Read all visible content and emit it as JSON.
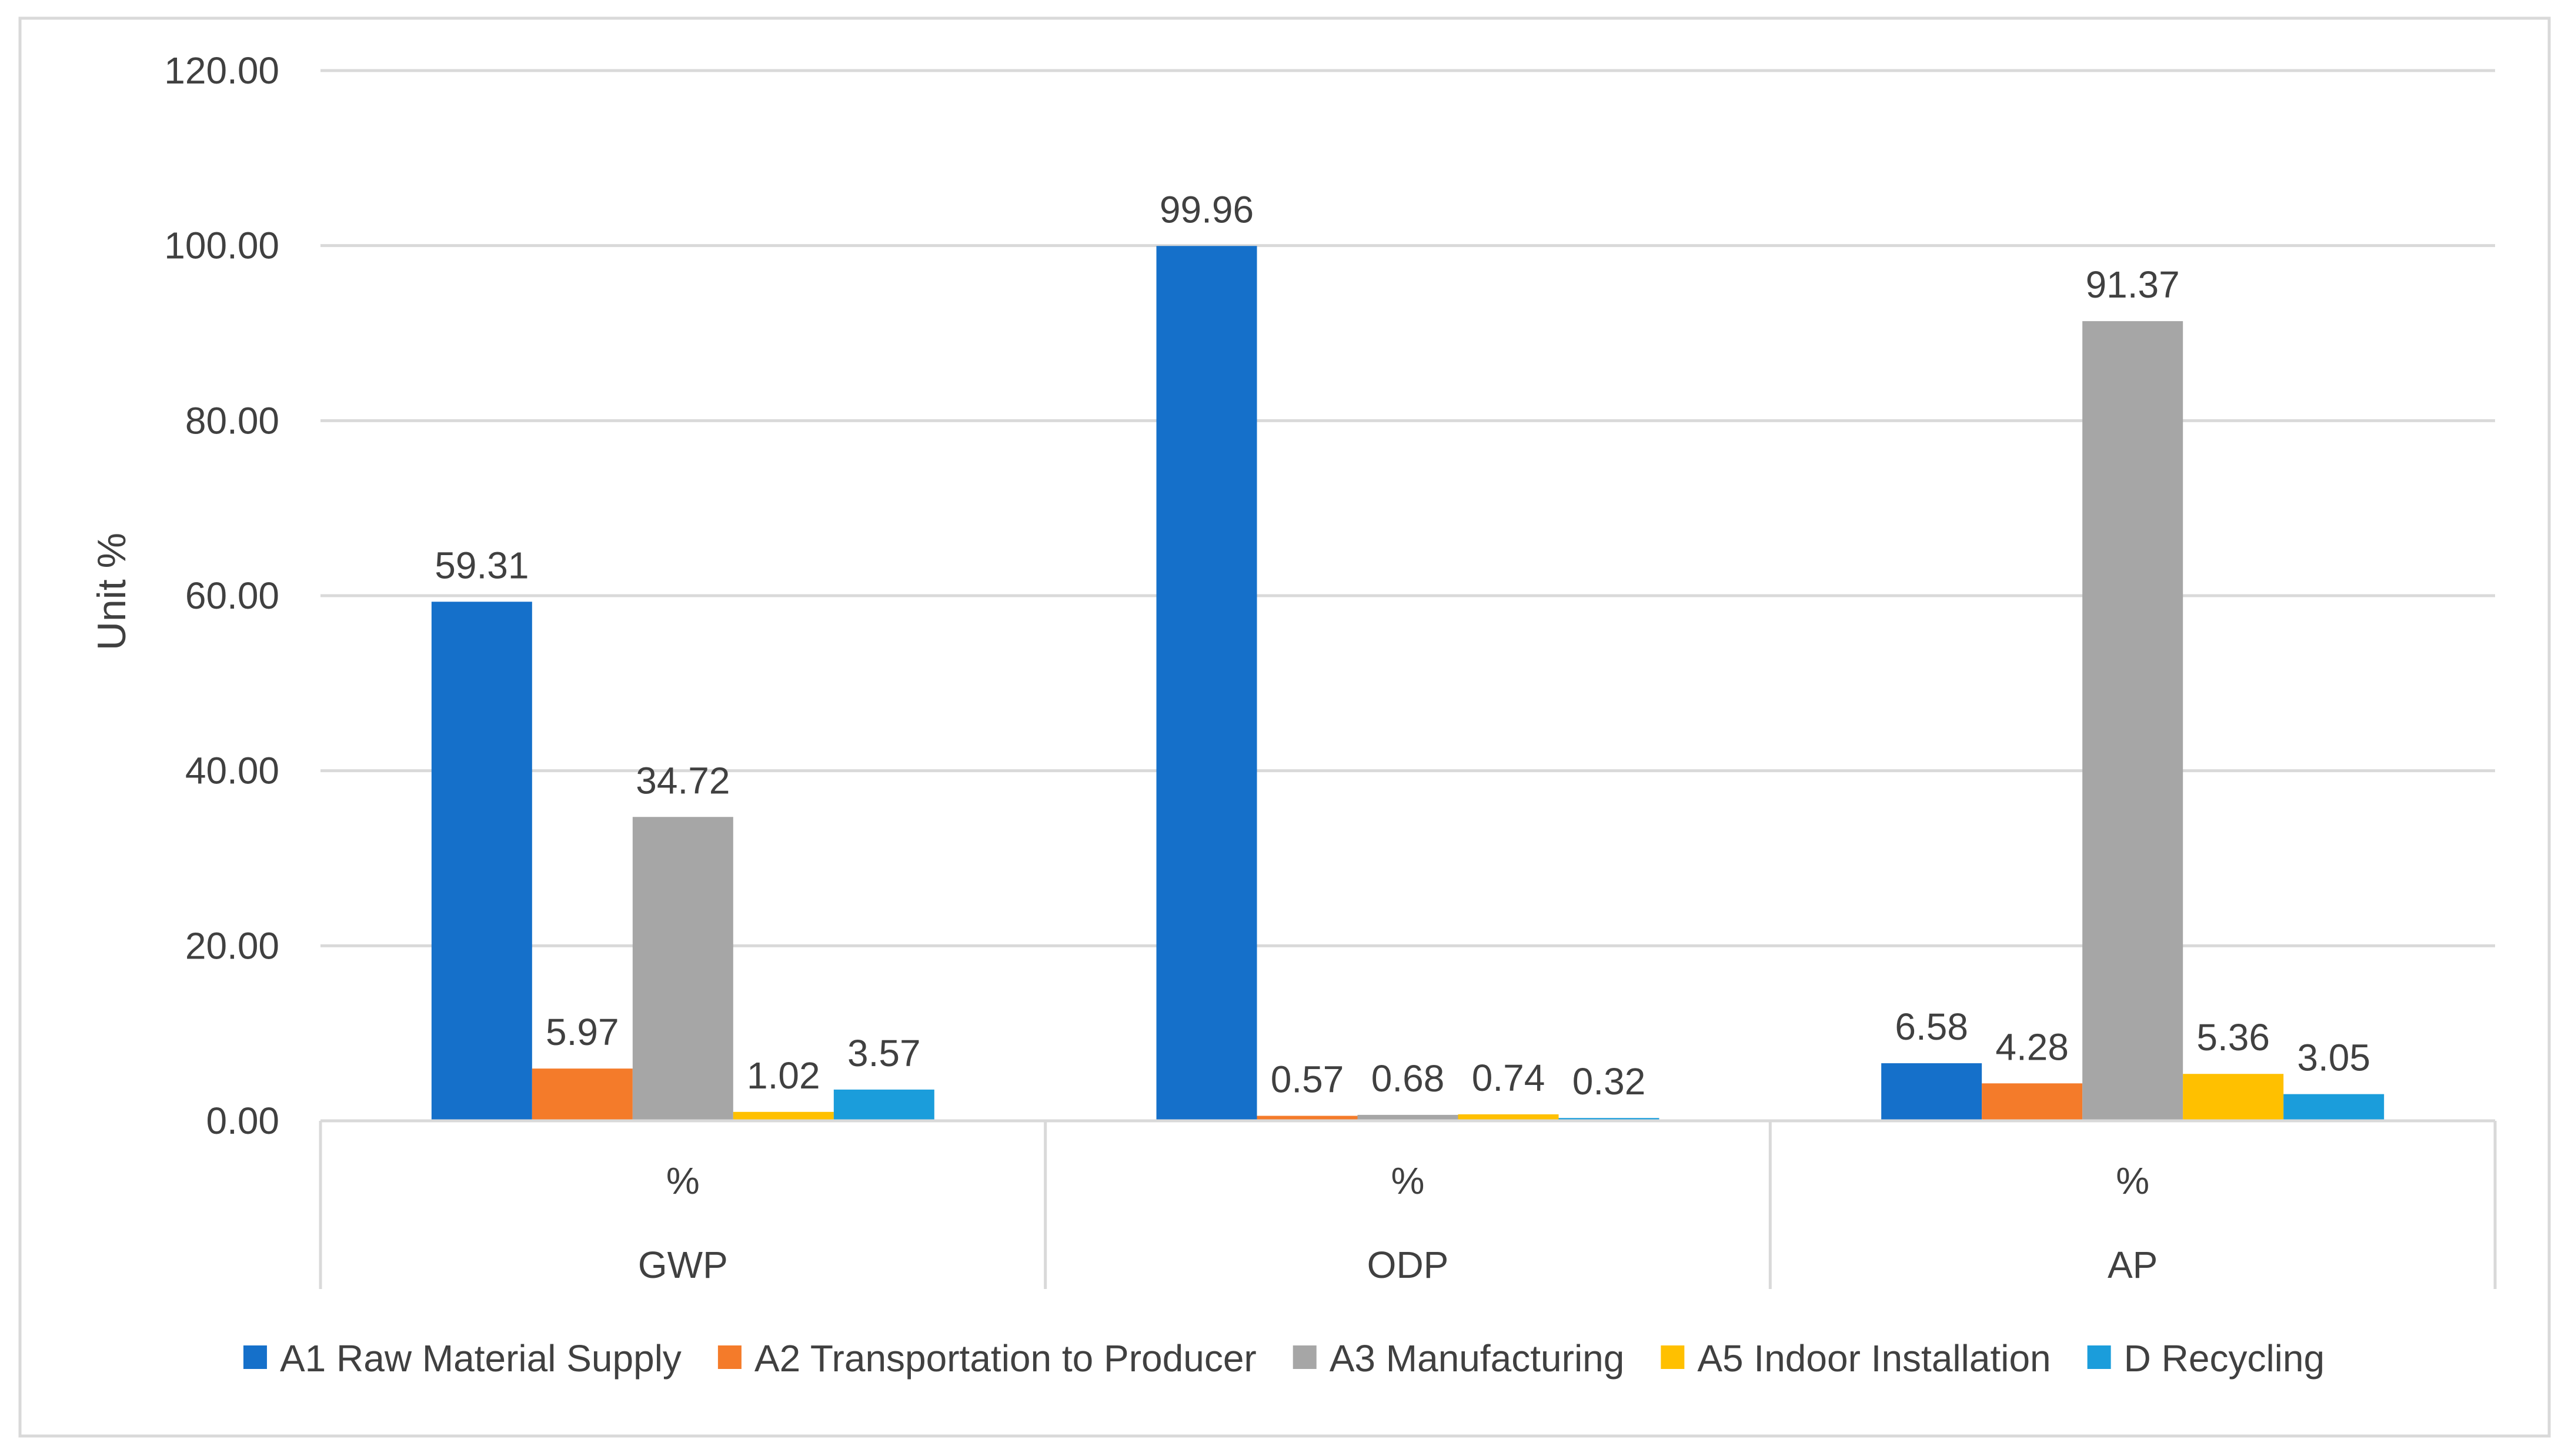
{
  "chart_data": {
    "type": "bar",
    "title": "",
    "xlabel": "",
    "ylabel": "Unit %",
    "ylim": [
      0,
      120
    ],
    "ytick_step": 20,
    "ytick_labels": [
      "0.00",
      "20.00",
      "40.00",
      "60.00",
      "80.00",
      "100.00",
      "120.00"
    ],
    "grid": true,
    "legend_position": "bottom",
    "categories": [
      {
        "unit": "%",
        "name": "GWP"
      },
      {
        "unit": "%",
        "name": "ODP"
      },
      {
        "unit": "%",
        "name": "AP"
      }
    ],
    "series": [
      {
        "name": "A1 Raw Material Supply",
        "color": "#1570CA",
        "values": [
          59.31,
          99.96,
          6.58
        ],
        "labels": [
          "59.31",
          "99.96",
          "6.58"
        ]
      },
      {
        "name": "A2 Transportation to Producer",
        "color": "#F47B2A",
        "values": [
          5.97,
          0.57,
          4.28
        ],
        "labels": [
          "5.97",
          "0.57",
          "4.28"
        ]
      },
      {
        "name": "A3 Manufacturing",
        "color": "#A6A6A6",
        "values": [
          34.72,
          0.68,
          91.37
        ],
        "labels": [
          "34.72",
          "0.68",
          "91.37"
        ]
      },
      {
        "name": "A5 Indoor Installation",
        "color": "#FFC000",
        "values": [
          1.02,
          0.74,
          5.36
        ],
        "labels": [
          "1.02",
          "0.74",
          "5.36"
        ]
      },
      {
        "name": "D Recycling",
        "color": "#1B9DDB",
        "values": [
          3.57,
          0.32,
          3.05
        ],
        "labels": [
          "3.57",
          "0.32",
          "3.05"
        ]
      }
    ]
  }
}
